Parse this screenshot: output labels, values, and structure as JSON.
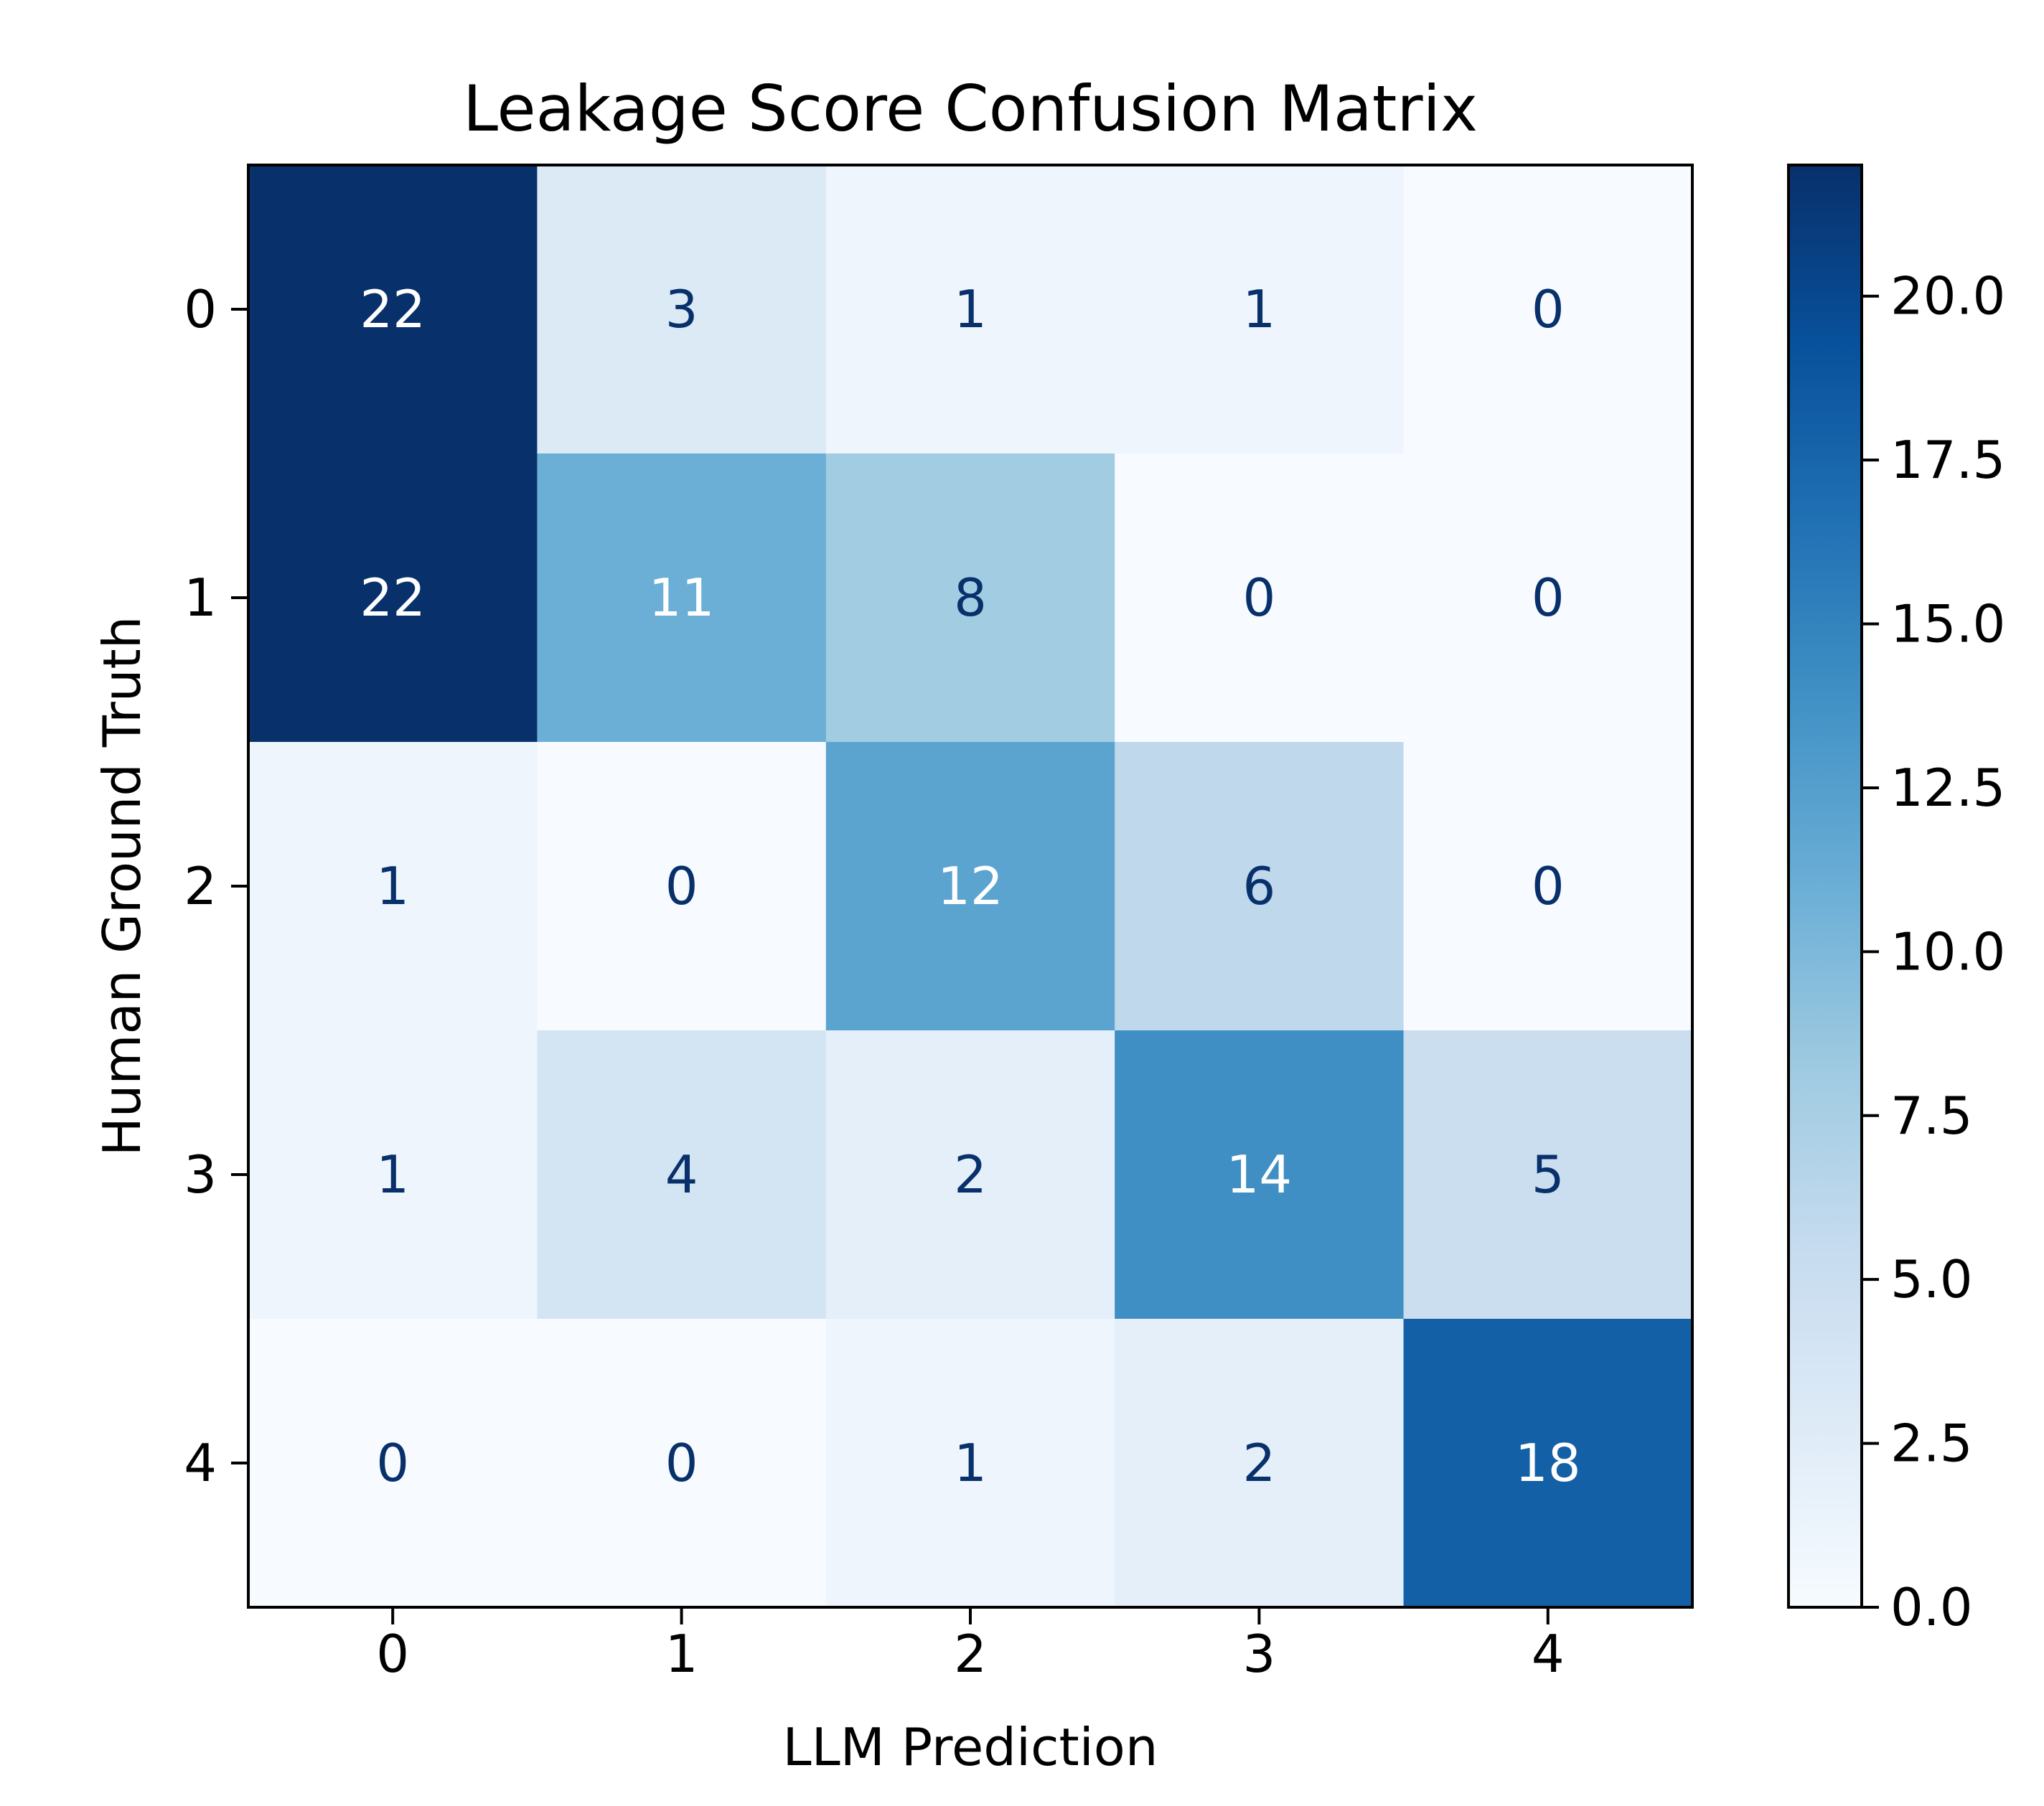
{
  "chart_data": {
    "type": "heatmap",
    "title": "Leakage Score Confusion Matrix",
    "xlabel": "LLM Prediction",
    "ylabel": "Human Ground Truth",
    "x_categories": [
      "0",
      "1",
      "2",
      "3",
      "4"
    ],
    "y_categories": [
      "0",
      "1",
      "2",
      "3",
      "4"
    ],
    "matrix": [
      [
        22,
        3,
        1,
        1,
        0
      ],
      [
        22,
        11,
        8,
        0,
        0
      ],
      [
        1,
        0,
        12,
        6,
        0
      ],
      [
        1,
        4,
        2,
        14,
        5
      ],
      [
        0,
        0,
        1,
        2,
        18
      ]
    ],
    "colormap": "Blues",
    "colorbar": {
      "range": [
        0,
        22
      ],
      "ticks": [
        0.0,
        2.5,
        5.0,
        7.5,
        10.0,
        12.5,
        15.0,
        17.5,
        20.0
      ],
      "tick_labels": [
        "0.0",
        "2.5",
        "5.0",
        "7.5",
        "10.0",
        "12.5",
        "15.0",
        "17.5",
        "20.0"
      ]
    },
    "text_color_dark": "#08306b",
    "text_color_light": "#ffffff",
    "grid": false
  }
}
